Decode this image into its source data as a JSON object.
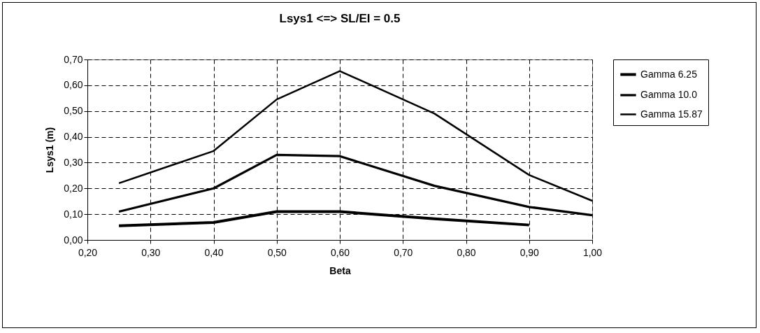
{
  "chart_data": {
    "type": "line",
    "title": "Lsys1 <=> SL/EI = 0.5",
    "xlabel": "Beta",
    "ylabel": "Lsys1 (m)",
    "x": [
      0.25,
      0.4,
      0.5,
      0.6,
      0.75,
      0.9,
      1.0
    ],
    "series": [
      {
        "name": "Gamma 6.25",
        "color": "#000000",
        "values": [
          0.055,
          0.068,
          0.11,
          0.11,
          0.082,
          0.058,
          null
        ]
      },
      {
        "name": "Gamma 10.0",
        "color": "#000000",
        "values": [
          0.11,
          0.2,
          0.33,
          0.325,
          0.21,
          0.128,
          0.096
        ]
      },
      {
        "name": "Gamma 15.87",
        "color": "#000000",
        "values": [
          0.22,
          0.345,
          0.545,
          0.655,
          0.49,
          0.252,
          0.152
        ]
      }
    ],
    "xlim": [
      0.2,
      1.0
    ],
    "xticks": [
      {
        "value": 0.2,
        "label": "0,20"
      },
      {
        "value": 0.3,
        "label": "0,30"
      },
      {
        "value": 0.4,
        "label": "0,40"
      },
      {
        "value": 0.5,
        "label": "0,50"
      },
      {
        "value": 0.6,
        "label": "0,60"
      },
      {
        "value": 0.7,
        "label": "0,70"
      },
      {
        "value": 0.8,
        "label": "0,80"
      },
      {
        "value": 0.9,
        "label": "0,90"
      },
      {
        "value": 1.0,
        "label": "1,00"
      }
    ],
    "ylim": [
      0,
      0.7
    ],
    "yticks": [
      {
        "value": 0,
        "label": "0,00"
      },
      {
        "value": 0.1,
        "label": "0,10"
      },
      {
        "value": 0.2,
        "label": "0,20"
      },
      {
        "value": 0.3,
        "label": "0,30"
      },
      {
        "value": 0.4,
        "label": "0,40"
      },
      {
        "value": 0.5,
        "label": "0,50"
      },
      {
        "value": 0.6,
        "label": "0,60"
      },
      {
        "value": 0.7,
        "label": "0,70"
      }
    ],
    "grid": true,
    "legend": "right",
    "marker": "none",
    "line_style": "solid"
  }
}
